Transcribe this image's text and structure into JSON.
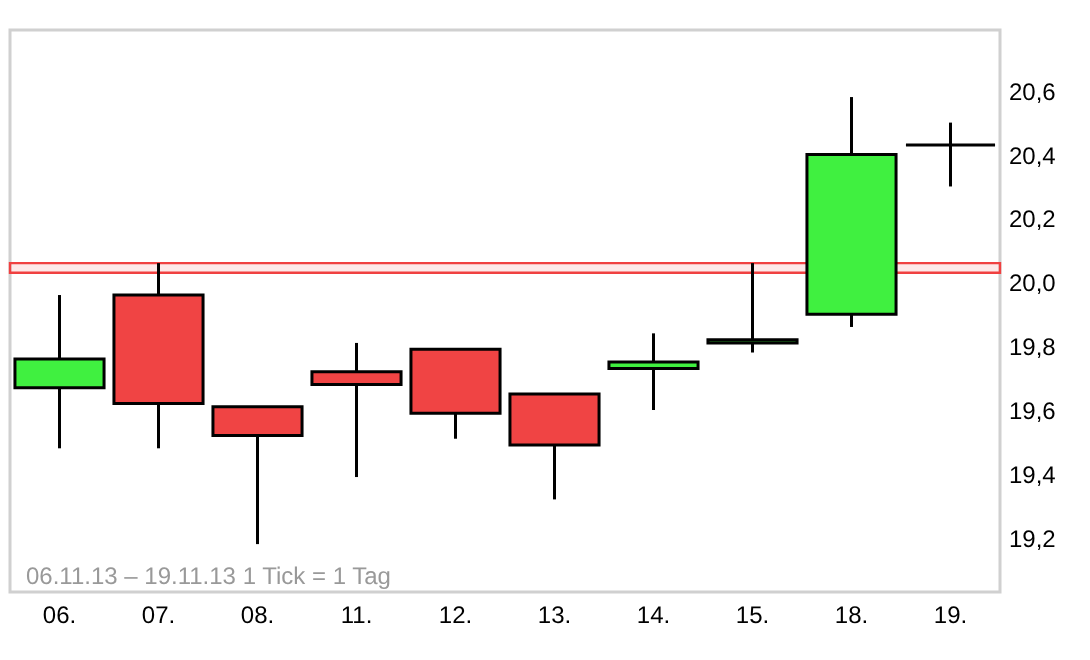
{
  "chart_data": {
    "type": "candlestick",
    "categories": [
      "06.",
      "07.",
      "08.",
      "11.",
      "12.",
      "13.",
      "14.",
      "15.",
      "18.",
      "19."
    ],
    "ohlc": [
      [
        19.67,
        19.96,
        19.48,
        19.76
      ],
      [
        19.96,
        20.06,
        19.48,
        19.62
      ],
      [
        19.61,
        19.61,
        19.18,
        19.52
      ],
      [
        19.72,
        19.81,
        19.39,
        19.68
      ],
      [
        19.79,
        19.79,
        19.51,
        19.59
      ],
      [
        19.65,
        19.65,
        19.32,
        19.49
      ],
      [
        19.73,
        19.84,
        19.6,
        19.75
      ],
      [
        19.81,
        20.06,
        19.78,
        19.82
      ],
      [
        19.9,
        20.58,
        19.86,
        20.4
      ],
      [
        20.43,
        20.5,
        20.3,
        20.43
      ]
    ],
    "colors": [
      "#40f040",
      "#f04444",
      "#f04444",
      "#f04444",
      "#f04444",
      "#f04444",
      "#40f040",
      "#40f040",
      "#40f040",
      "#000000"
    ],
    "ylim": [
      19.03,
      20.79
    ],
    "yticks": [
      {
        "value": 19.2,
        "label": "19,2"
      },
      {
        "value": 19.4,
        "label": "19,4"
      },
      {
        "value": 19.6,
        "label": "19,6"
      },
      {
        "value": 19.8,
        "label": "19,8"
      },
      {
        "value": 20.0,
        "label": "20,0"
      },
      {
        "value": 20.2,
        "label": "20,2"
      },
      {
        "value": 20.4,
        "label": "20,4"
      },
      {
        "value": 20.6,
        "label": "20,6"
      }
    ],
    "bands": [
      {
        "axis": "y",
        "from": 20.03,
        "to": 20.06,
        "color": "#f04040"
      }
    ],
    "annotations": [
      "06.11.13 – 19.11.13   1 Tick = 1 Tag"
    ],
    "grid": false
  }
}
